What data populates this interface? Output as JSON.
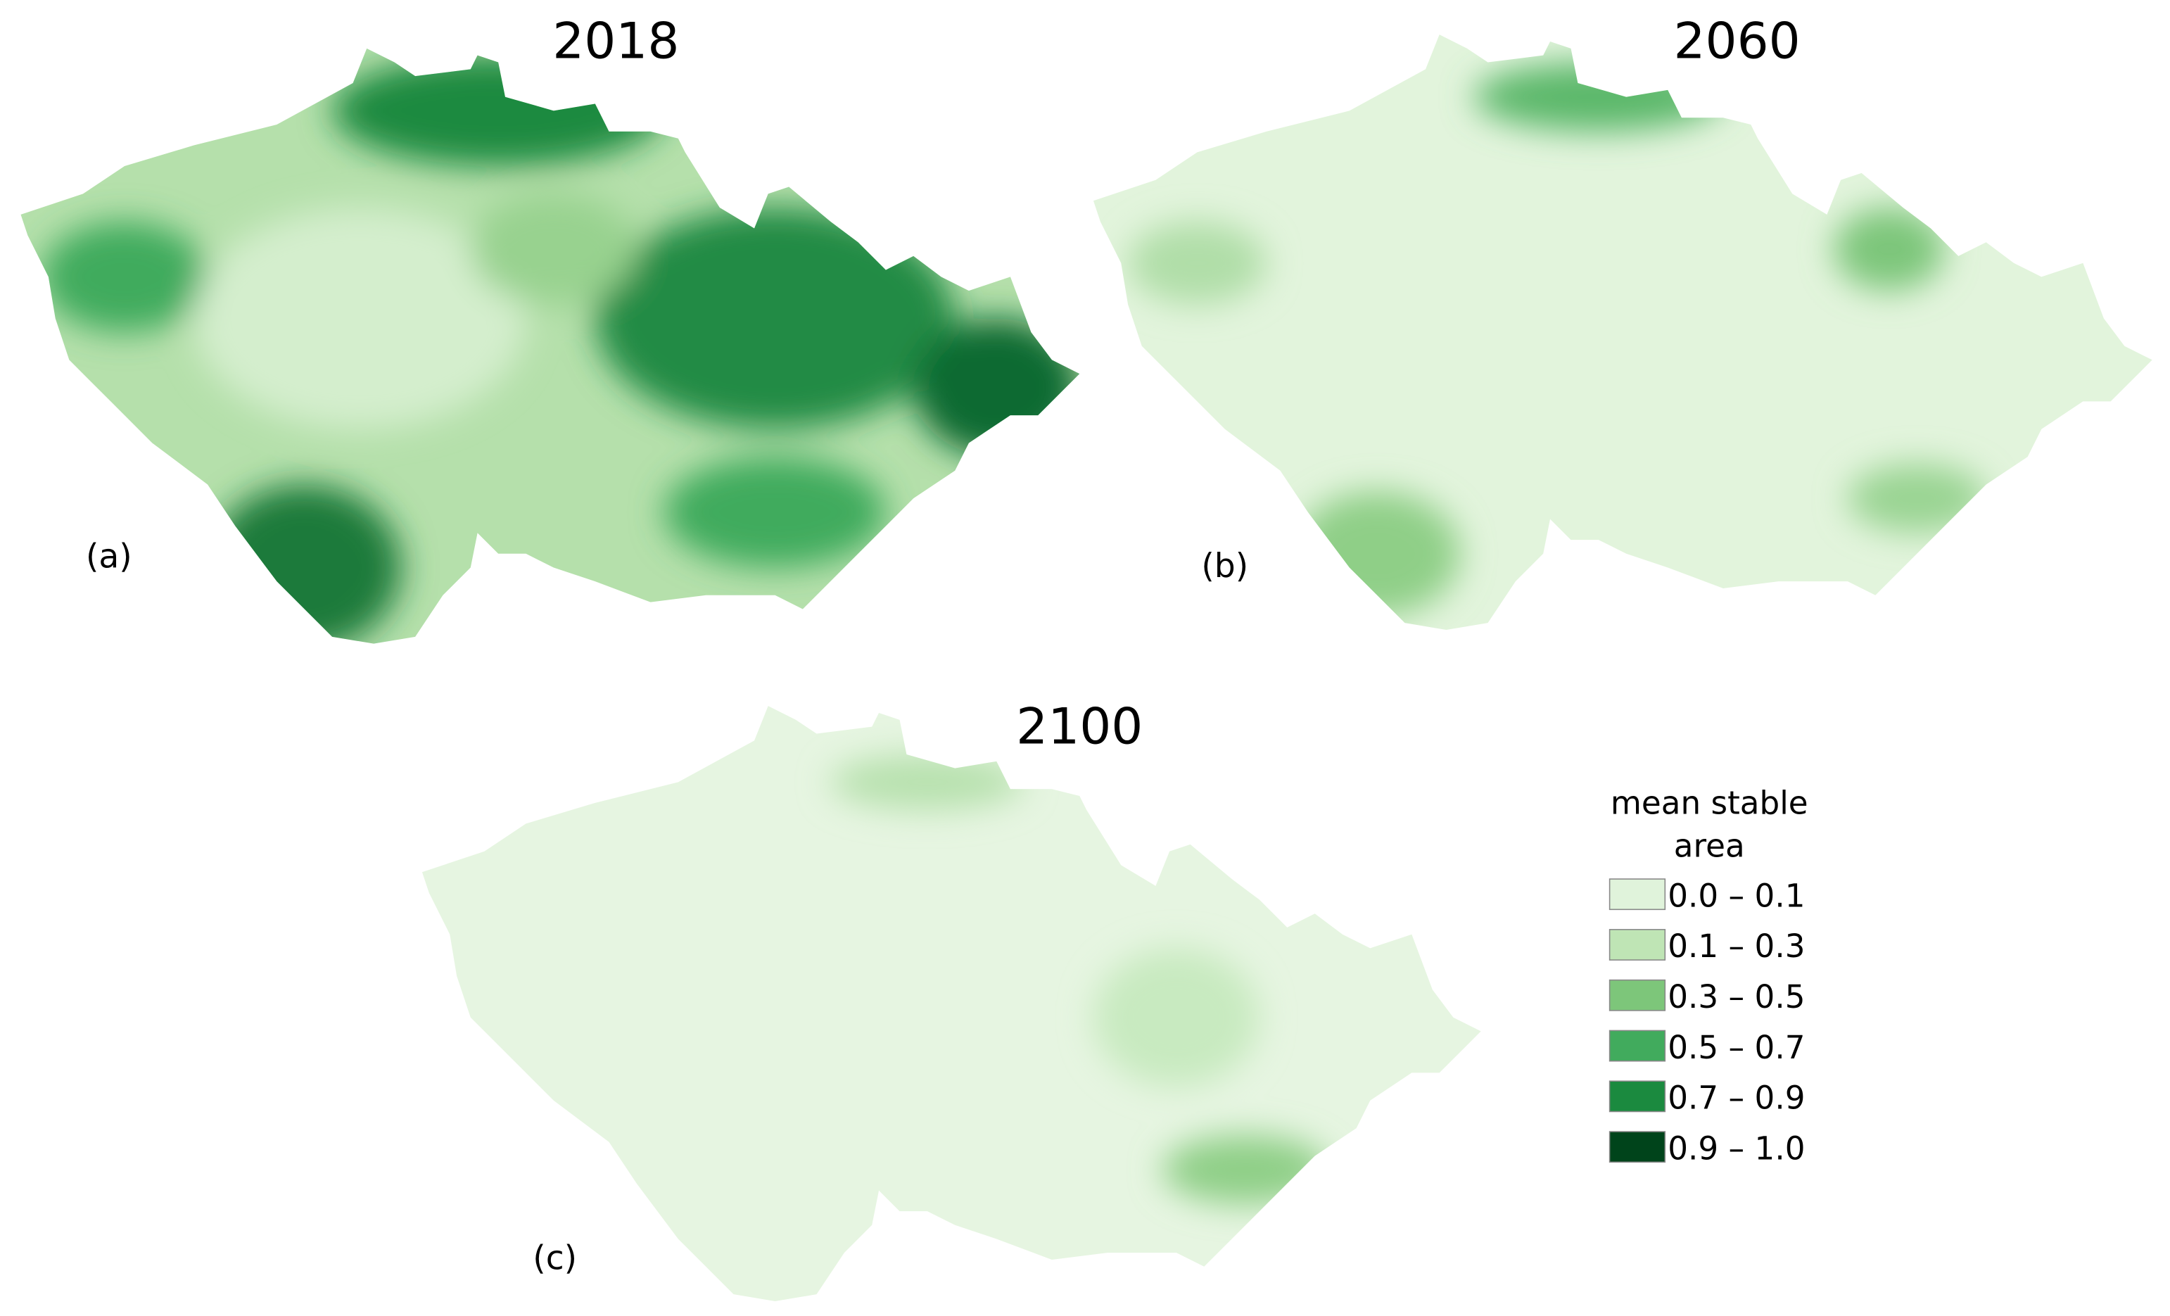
{
  "maps": [
    {
      "title": "2018",
      "label": "(a)"
    },
    {
      "title": "2060",
      "label": "(b)"
    },
    {
      "title": "2100",
      "label": "(c)"
    }
  ],
  "legend": {
    "title_lines": [
      "mean stable",
      "area"
    ],
    "items": [
      {
        "label": "0.0 – 0.1",
        "color": "#e0f3db"
      },
      {
        "label": "0.1 – 0.3",
        "color": "#bfe5b5"
      },
      {
        "label": "0.3 – 0.5",
        "color": "#7dc67a"
      },
      {
        "label": "0.5 – 0.7",
        "color": "#41ab5d"
      },
      {
        "label": "0.7 – 0.9",
        "color": "#1b8a3f"
      },
      {
        "label": "0.9 – 1.0",
        "color": "#00441b"
      }
    ]
  }
}
